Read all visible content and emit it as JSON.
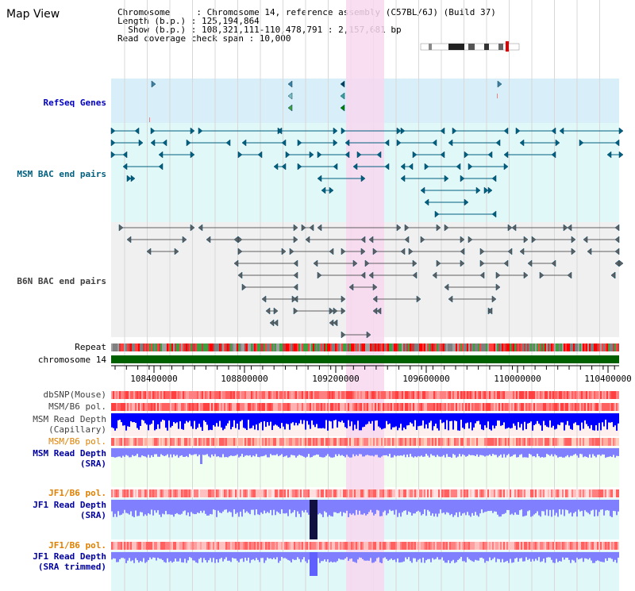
{
  "view": {
    "title": "Map View",
    "info_lines": [
      "Chromosome     : Chromosome 14, reference assembly (C57BL/6J) (Build 37)",
      "Length (b.p.) : 125,194,864",
      "  Show (b.p.) : 108,321,111-110,478,791 : 2,157,681 bp",
      "Read coverage check span : 10,000"
    ]
  },
  "tracks": {
    "refseq": "RefSeq Genes",
    "msm_bac": "MSM BAC end pairs",
    "b6n_bac": "B6N BAC end pairs",
    "repeat": "Repeat",
    "chromosome": "chromosome 14",
    "dbsnp": "dbSNP(Mouse)",
    "msm_pol": "MSM/B6 pol.",
    "msm_depth_cap_1": "MSM Read Depth",
    "msm_depth_cap_2": "(Capillary)",
    "msm_pol2": "MSM/B6 pol.",
    "msm_depth_sra_1": "MSM Read Depth",
    "msm_depth_sra_2": "(SRA)",
    "jf1_pol": "JF1/B6 pol.",
    "jf1_depth_1": "JF1 Read Depth",
    "jf1_depth_2": "(SRA)",
    "jf1_pol2": "JF1/B6 pol.",
    "jf1_trim_1": "JF1 Read Depth",
    "jf1_trim_2": "(SRA trimmed)"
  },
  "axis": {
    "ticks": [
      "108400000",
      "108800000",
      "109200000",
      "109600000",
      "110000000",
      "110400000"
    ]
  },
  "colors": {
    "highlight": "#f8d8f0",
    "refseq_bg": "#d8eef8",
    "msm_bg": "#e0f8f8",
    "gene_teal": "#006080",
    "bac_gray": "#606060",
    "chrom_green": "#006000",
    "depth_blue": "#0000ff",
    "depth_light": "#8080ff"
  }
}
